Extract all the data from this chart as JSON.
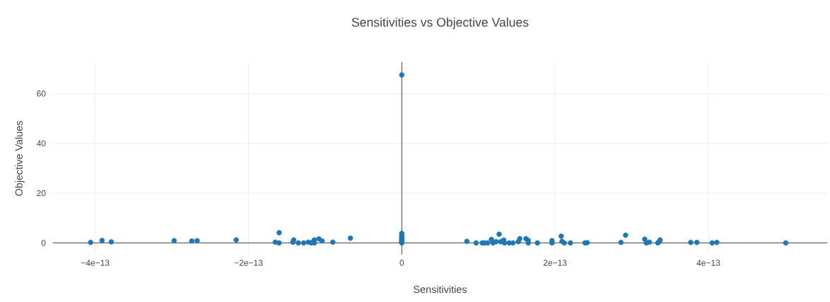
{
  "chart_data": {
    "type": "scatter",
    "title": "Sensitivities vs Objective Values",
    "xlabel": "Sensitivities",
    "ylabel": "Objective Values",
    "color": "#1f77b4",
    "marker": "circle",
    "grid": true,
    "legend": false,
    "xlim": [
      -4.55e-13,
      5.55e-13
    ],
    "ylim": [
      -4.7,
      72.6
    ],
    "xticks": [
      {
        "value": -4e-13,
        "label": "−4e−13"
      },
      {
        "value": -2e-13,
        "label": "−2e−13"
      },
      0,
      {
        "value": 2e-13,
        "label": "2e−13"
      },
      {
        "value": 4e-13,
        "label": "4e−13"
      }
    ],
    "yticks": [
      0,
      20,
      40,
      60
    ],
    "x": [
      -4.06e-13,
      -3.91e-13,
      -3.79e-13,
      -2.97e-13,
      -2.74e-13,
      -2.67e-13,
      -2.16e-13,
      -1.65e-13,
      -1.6e-13,
      -1.6e-13,
      -1.42e-13,
      -1.41e-13,
      -1.35e-13,
      -1.28e-13,
      -1.22e-13,
      -1.18e-13,
      -1.15e-13,
      -1.14e-13,
      -1.14e-13,
      -1.08e-13,
      -1.04e-13,
      -9e-14,
      -6.7e-14,
      0,
      0,
      0,
      0,
      0,
      0,
      0,
      0,
      0,
      0,
      8.5e-14,
      9.7e-14,
      1.05e-13,
      1.08e-13,
      1.12e-13,
      1.17e-13,
      1.19e-13,
      1.23e-13,
      1.27e-13,
      1.29e-13,
      1.33e-13,
      1.34e-13,
      1.4e-13,
      1.45e-13,
      1.52e-13,
      1.54e-13,
      1.62e-13,
      1.65e-13,
      1.65e-13,
      1.77e-13,
      1.96e-13,
      1.96e-13,
      2.08e-13,
      2.09e-13,
      2.12e-13,
      2.2e-13,
      2.39e-13,
      2.42e-13,
      2.86e-13,
      2.92e-13,
      3.17e-13,
      3.19e-13,
      3.23e-13,
      3.34e-13,
      3.36e-13,
      3.37e-13,
      3.77e-13,
      3.85e-13,
      4.05e-13,
      4.11e-13,
      5.01e-13
    ],
    "values": [
      0.2,
      1.0,
      0.4,
      0.9,
      0.8,
      0.9,
      1.2,
      0.3,
      4.1,
      0.0,
      0.3,
      1.2,
      0.0,
      0.0,
      0.3,
      0.0,
      0.8,
      1.2,
      0.0,
      1.6,
      0.8,
      0.3,
      1.9,
      67.5,
      3.8,
      3.2,
      2.6,
      2.0,
      1.5,
      1.0,
      0.6,
      0.2,
      0.0,
      0.6,
      0.0,
      0.0,
      0.0,
      0.0,
      1.4,
      0.0,
      0.5,
      3.5,
      0.5,
      1.1,
      0.0,
      0.0,
      0.0,
      0.5,
      1.7,
      1.7,
      1.0,
      0.0,
      0.0,
      0.9,
      0.0,
      2.7,
      0.6,
      0.0,
      0.0,
      0.0,
      0.1,
      0.2,
      3.1,
      1.5,
      0.0,
      0.3,
      0.0,
      0.5,
      1.2,
      0.2,
      0.2,
      0.0,
      0.2,
      0.0
    ]
  }
}
